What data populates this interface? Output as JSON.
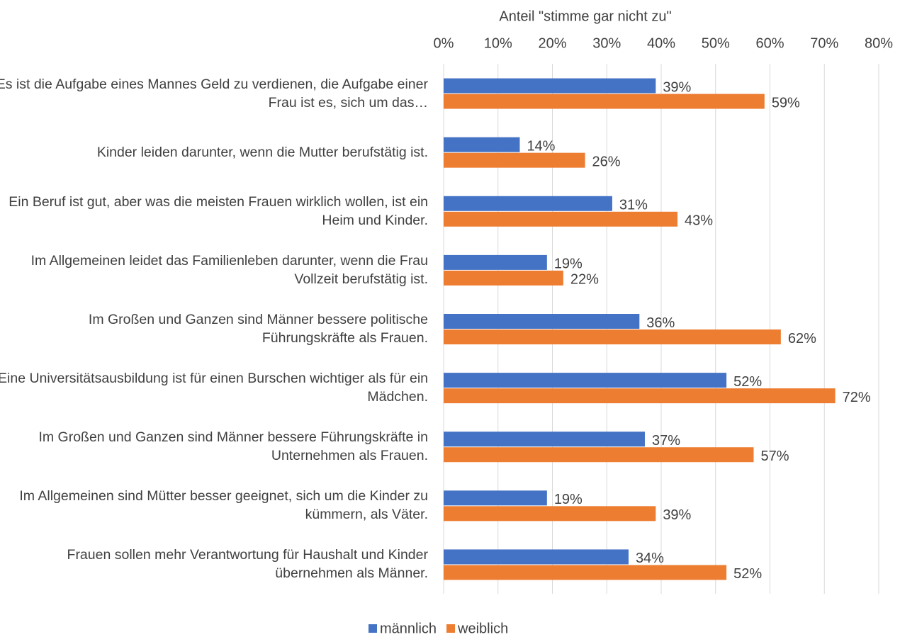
{
  "chart_data": {
    "type": "bar",
    "orientation": "horizontal",
    "x_label": "Anteil \"stimme gar nicht zu\"",
    "categories": [
      "Es ist die Aufgabe eines Mannes Geld zu verdienen, die Aufgabe einer Frau ist es, sich um das…",
      "Kinder leiden darunter, wenn die Mutter berufstätig ist.",
      "Ein Beruf ist gut, aber was die meisten Frauen wirklich wollen, ist ein Heim und Kinder.",
      "Im Allgemeinen leidet das Familienleben darunter, wenn die Frau Vollzeit berufstätig ist.",
      "Im Großen und Ganzen sind Männer bessere politische Führungskräfte als Frauen.",
      "Eine Universitätsausbildung ist für einen Burschen wichtiger als für ein Mädchen.",
      "Im Großen und Ganzen sind Männer bessere Führungskräfte in Unternehmen als Frauen.",
      "Im Allgemeinen sind Mütter besser geeignet, sich um die Kinder zu kümmern, als Väter.",
      "Frauen sollen mehr Verantwortung für Haushalt und Kinder übernehmen als Männer."
    ],
    "series": [
      {
        "name": "männlich",
        "color": "#4472c4",
        "values": [
          39,
          14,
          31,
          19,
          36,
          52,
          37,
          19,
          34
        ],
        "value_labels": [
          "39%",
          "14%",
          "31%",
          "19%",
          "36%",
          "52%",
          "37%",
          "19%",
          "34%"
        ]
      },
      {
        "name": "weiblich",
        "color": "#ed7d31",
        "values": [
          59,
          26,
          43,
          22,
          62,
          72,
          57,
          39,
          52
        ],
        "value_labels": [
          "59%",
          "26%",
          "43%",
          "22%",
          "62%",
          "72%",
          "57%",
          "39%",
          "52%"
        ]
      }
    ],
    "xlim": [
      0,
      80
    ],
    "xticks": [
      {
        "value": 0,
        "label": "0%"
      },
      {
        "value": 10,
        "label": "10%"
      },
      {
        "value": 20,
        "label": "20%"
      },
      {
        "value": 30,
        "label": "30%"
      },
      {
        "value": 40,
        "label": "40%"
      },
      {
        "value": 50,
        "label": "50%"
      },
      {
        "value": 60,
        "label": "60%"
      },
      {
        "value": 70,
        "label": "70%"
      },
      {
        "value": 80,
        "label": "80%"
      }
    ],
    "grid": true,
    "legend": "bottom"
  }
}
